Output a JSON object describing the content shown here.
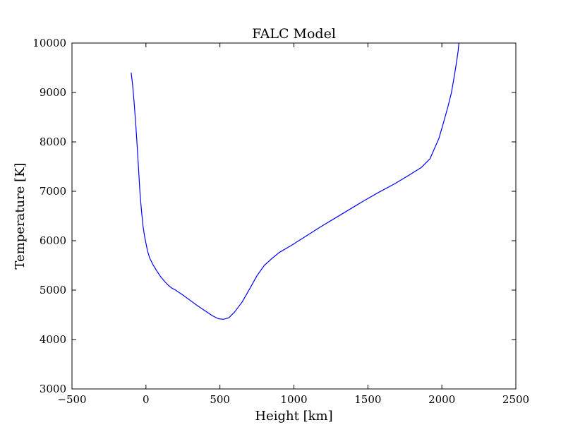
{
  "chart_data": {
    "type": "line",
    "title": "FALC Model",
    "xlabel": "Height [km]",
    "ylabel": "Temperature [K]",
    "xlim": [
      -500,
      2500
    ],
    "ylim": [
      3000,
      10000
    ],
    "xticks": [
      -500,
      0,
      500,
      1000,
      1500,
      2000,
      2500
    ],
    "yticks": [
      3000,
      4000,
      5000,
      6000,
      7000,
      8000,
      9000,
      10000
    ],
    "xtick_labels": [
      "−500",
      "0",
      "500",
      "1000",
      "1500",
      "2000",
      "2500"
    ],
    "ytick_labels": [
      "3000",
      "4000",
      "5000",
      "6000",
      "7000",
      "8000",
      "9000",
      "10000"
    ],
    "grid": false,
    "legend": "none",
    "line_color": "#0000ff",
    "series": [
      {
        "x": [
          -100,
          -90,
          -80,
          -70,
          -60,
          -50,
          -40,
          -30,
          -20,
          -10,
          0,
          10,
          25,
          50,
          75,
          100,
          125,
          150,
          175,
          200,
          250,
          300,
          350,
          400,
          450,
          490,
          525,
          560,
          600,
          650,
          700,
          750,
          800,
          855,
          900,
          980,
          1065,
          1180,
          1280,
          1380,
          1480,
          1580,
          1680,
          1780,
          1860,
          1920,
          1980,
          2010,
          2040,
          2065,
          2085,
          2100,
          2110,
          2115
        ],
        "y": [
          9400,
          9150,
          8800,
          8400,
          7950,
          7450,
          6950,
          6600,
          6300,
          6100,
          5950,
          5800,
          5650,
          5500,
          5380,
          5270,
          5180,
          5100,
          5040,
          5000,
          4900,
          4790,
          4680,
          4580,
          4480,
          4420,
          4410,
          4440,
          4560,
          4760,
          5020,
          5290,
          5500,
          5650,
          5760,
          5900,
          6060,
          6280,
          6460,
          6640,
          6820,
          6990,
          7150,
          7330,
          7480,
          7660,
          8070,
          8380,
          8700,
          9000,
          9350,
          9630,
          9840,
          10000
        ]
      }
    ]
  }
}
